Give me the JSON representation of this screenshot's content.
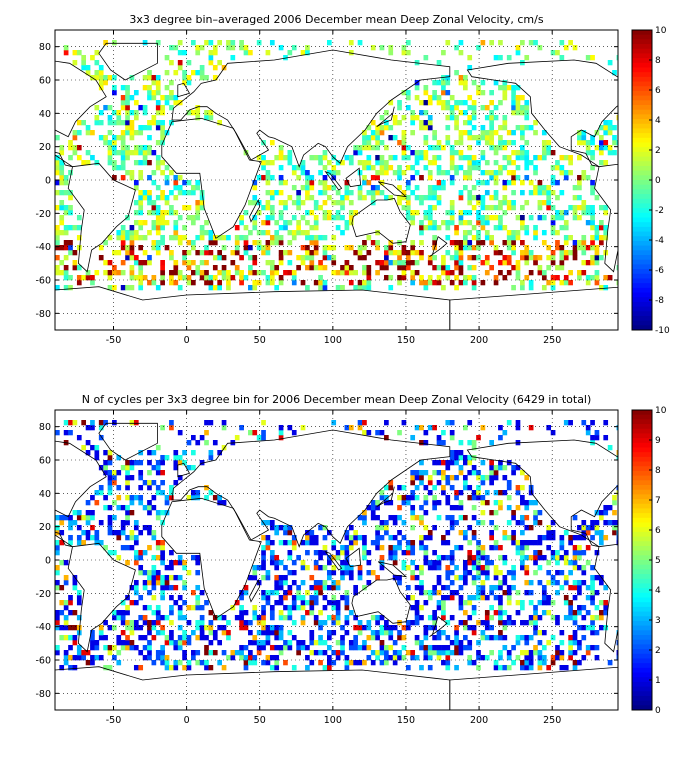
{
  "chart_data": [
    {
      "type": "heatmap",
      "title": "3x3 degree bin–averaged 2006 December mean Deep Zonal Velocity, cm/s",
      "xlim": [
        -90,
        295
      ],
      "ylim": [
        -90,
        90
      ],
      "x_ticks": [
        -50,
        0,
        50,
        100,
        150,
        200,
        250
      ],
      "x_tick_labels": [
        "-50",
        "0",
        "50",
        "100",
        "150",
        "200",
        "250"
      ],
      "y_ticks": [
        80,
        60,
        40,
        20,
        0,
        -20,
        -40,
        -60,
        -80
      ],
      "y_tick_labels": [
        "80",
        "60",
        "40",
        "20",
        "0",
        "-20",
        "-40",
        "-60",
        "-80"
      ],
      "colorbar": {
        "colormap": "jet",
        "range": [
          -10,
          10
        ],
        "ticks": [
          10,
          8,
          6,
          4,
          2,
          0,
          -2,
          -4,
          -6,
          -8,
          -10
        ],
        "tick_labels": [
          "10",
          "8",
          "6",
          "4",
          "2",
          "0",
          "-2",
          "-4",
          "-6",
          "-8",
          "-10"
        ]
      },
      "grid": true,
      "bin_size_deg": 3,
      "cell_values_note": "",
      "cells": []
    },
    {
      "type": "heatmap",
      "title": "N of cycles per 3x3 degree bin for 2006 December mean Deep Zonal Velocity (6429 in total)",
      "xlim": [
        -90,
        295
      ],
      "ylim": [
        -90,
        90
      ],
      "x_ticks": [
        -50,
        0,
        50,
        100,
        150,
        200,
        250
      ],
      "x_tick_labels": [
        "-50",
        "0",
        "50",
        "100",
        "150",
        "200",
        "250"
      ],
      "y_ticks": [
        80,
        60,
        40,
        20,
        0,
        -20,
        -40,
        -60,
        -80
      ],
      "y_tick_labels": [
        "80",
        "60",
        "40",
        "20",
        "0",
        "-20",
        "-40",
        "-60",
        "-80"
      ],
      "colorbar": {
        "colormap": "jet",
        "range": [
          0,
          10
        ],
        "ticks": [
          10,
          9,
          8,
          7,
          6,
          5,
          4,
          3,
          2,
          1,
          0
        ],
        "tick_labels": [
          "10",
          "9",
          "8",
          "7",
          "6",
          "5",
          "4",
          "3",
          "2",
          "1",
          "0"
        ]
      },
      "grid": true,
      "bin_size_deg": 3,
      "cells": []
    }
  ]
}
